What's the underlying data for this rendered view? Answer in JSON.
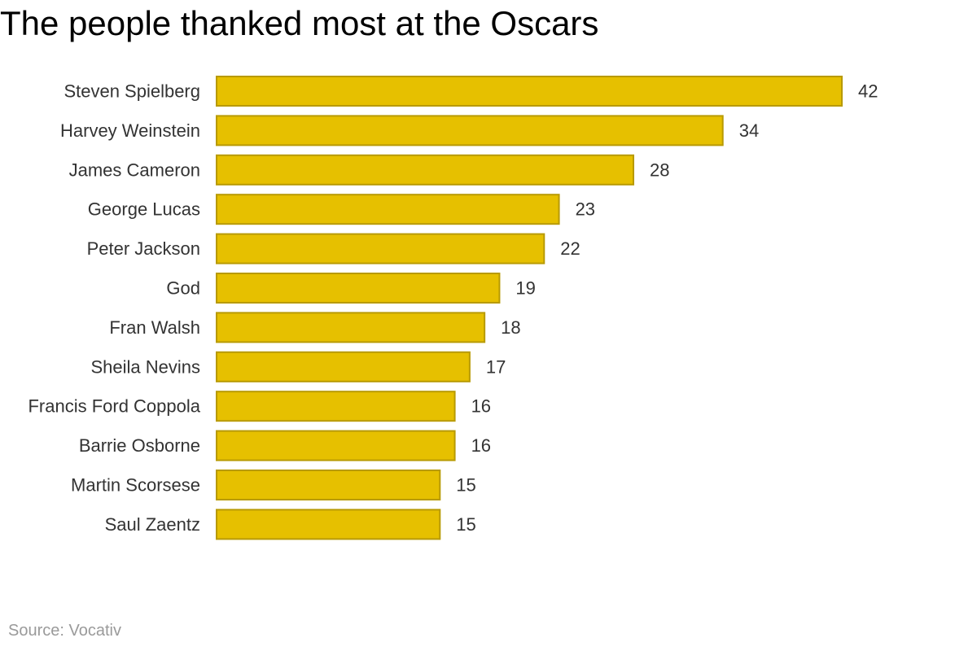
{
  "chart_data": {
    "type": "bar",
    "orientation": "horizontal",
    "title": "The people thanked most at the Oscars",
    "source": "Source: Vocativ",
    "categories": [
      "Steven Spielberg",
      "Harvey Weinstein",
      "James Cameron",
      "George Lucas",
      "Peter Jackson",
      "God",
      "Fran Walsh",
      "Sheila Nevins",
      "Francis Ford Coppola",
      "Barrie Osborne",
      "Martin Scorsese",
      "Saul Zaentz"
    ],
    "values": [
      42,
      34,
      28,
      23,
      22,
      19,
      18,
      17,
      16,
      16,
      15,
      15
    ],
    "xlabel": "",
    "ylabel": "",
    "xlim": [
      0,
      42
    ],
    "grid": false,
    "legend": "none",
    "data_labels": true,
    "colors": {
      "bar_fill": "#e6c000",
      "bar_stroke": "#b89a00",
      "label_text": "#333333"
    }
  }
}
